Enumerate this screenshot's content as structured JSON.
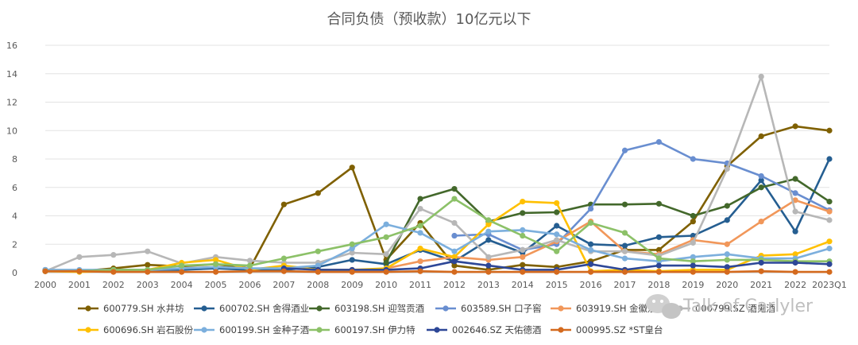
{
  "chart_data": {
    "type": "line",
    "title": "合同负债（预收款）10亿元以下",
    "xlabel": "",
    "ylabel": "",
    "ylim": [
      0,
      16
    ],
    "yticks": [
      0,
      2,
      4,
      6,
      8,
      10,
      12,
      14,
      16
    ],
    "grid": true,
    "legend_position": "bottom",
    "categories": [
      "2000",
      "2001",
      "2002",
      "2003",
      "2004",
      "2005",
      "2006",
      "2007",
      "2008",
      "2009",
      "2010",
      "2011",
      "2012",
      "2013",
      "2014",
      "2015",
      "2016",
      "2017",
      "2018",
      "2019",
      "2020",
      "2021",
      "2022",
      "2023Q1"
    ],
    "series": [
      {
        "name": "600779.SH 水井坊",
        "color": "#7f6000",
        "values": [
          0.15,
          0.1,
          0.3,
          0.55,
          0.45,
          0.6,
          0.3,
          4.8,
          5.6,
          7.4,
          0.9,
          3.5,
          0.5,
          0.2,
          0.55,
          0.4,
          0.8,
          1.6,
          1.6,
          3.6,
          7.5,
          9.6,
          10.3,
          10.0
        ]
      },
      {
        "name": "600702.SH 舍得酒业",
        "color": "#255e91",
        "values": [
          0.2,
          0.1,
          0.2,
          0.2,
          0.2,
          0.3,
          0.2,
          0.2,
          0.4,
          0.9,
          0.6,
          1.6,
          0.8,
          2.3,
          1.4,
          3.3,
          2.0,
          1.9,
          2.5,
          2.6,
          3.7,
          6.5,
          2.9,
          8.0
        ]
      },
      {
        "name": "603198.SH 迎驾贡酒",
        "color": "#43682b",
        "values": [
          null,
          null,
          null,
          null,
          null,
          null,
          null,
          null,
          null,
          null,
          0.7,
          5.2,
          5.9,
          3.6,
          4.2,
          4.25,
          4.8,
          4.8,
          4.85,
          4.0,
          4.7,
          6.0,
          6.6,
          5.0
        ]
      },
      {
        "name": "603589.SH 口子窖",
        "color": "#698ed0",
        "values": [
          null,
          null,
          null,
          null,
          null,
          null,
          null,
          null,
          null,
          null,
          null,
          null,
          2.6,
          2.7,
          1.6,
          2.0,
          4.5,
          8.6,
          9.2,
          8.0,
          7.7,
          6.8,
          5.6,
          4.4
        ]
      },
      {
        "name": "603919.SH 金徽酒",
        "color": "#f1975a",
        "values": [
          null,
          null,
          null,
          null,
          null,
          null,
          null,
          null,
          null,
          null,
          0.3,
          0.8,
          1.1,
          0.9,
          1.1,
          2.2,
          3.6,
          1.5,
          1.3,
          2.3,
          2.0,
          3.6,
          5.1,
          4.3
        ]
      },
      {
        "name": "000799.SZ 酒鬼酒",
        "color": "#b7b7b7",
        "values": [
          0.1,
          1.1,
          1.25,
          1.5,
          0.65,
          1.1,
          0.85,
          0.7,
          0.7,
          1.4,
          1.3,
          4.5,
          3.5,
          1.1,
          1.6,
          2.3,
          1.5,
          1.5,
          1.2,
          2.1,
          7.3,
          13.8,
          4.3,
          3.7
        ]
      },
      {
        "name": "600696.SH 岩石股份",
        "color": "#ffc000",
        "values": [
          0.1,
          0.05,
          0.1,
          0.2,
          0.7,
          0.9,
          0.2,
          0.5,
          0.2,
          0.2,
          0.3,
          1.7,
          1.1,
          3.4,
          5.0,
          4.9,
          0.1,
          0.2,
          0.1,
          0.2,
          0.2,
          1.2,
          1.3,
          2.2
        ]
      },
      {
        "name": "600199.SH 金种子酒",
        "color": "#7cafdd",
        "values": [
          0.2,
          0.2,
          0.2,
          0.2,
          0.3,
          0.4,
          0.3,
          0.3,
          0.5,
          1.7,
          3.4,
          2.8,
          1.5,
          2.9,
          3.0,
          2.7,
          1.6,
          1.0,
          0.8,
          1.1,
          1.3,
          1.0,
          1.0,
          1.7
        ]
      },
      {
        "name": "600197.SH 伊力特",
        "color": "#8cc168",
        "values": [
          0.1,
          0.1,
          0.2,
          0.2,
          0.5,
          0.6,
          0.5,
          1.0,
          1.5,
          2.0,
          2.5,
          3.3,
          5.2,
          3.7,
          2.6,
          1.5,
          3.5,
          2.8,
          1.0,
          0.8,
          0.9,
          0.9,
          0.8,
          0.8
        ]
      },
      {
        "name": "002646.SZ 天佑德酒",
        "color": "#2d4797",
        "values": [
          null,
          null,
          null,
          null,
          null,
          null,
          null,
          0.3,
          0.2,
          0.2,
          0.2,
          0.3,
          0.8,
          0.5,
          0.2,
          0.2,
          0.6,
          0.2,
          0.5,
          0.5,
          0.4,
          0.7,
          0.7,
          0.6
        ]
      },
      {
        "name": "000995.SZ *ST皇台",
        "color": "#d46a1e",
        "values": [
          0.1,
          0.1,
          0.05,
          0.05,
          0.05,
          0.05,
          0.1,
          0.1,
          0.05,
          0.05,
          0.05,
          0.1,
          0.05,
          0.05,
          0.05,
          0.05,
          0.05,
          0.05,
          0.05,
          0.05,
          0.05,
          0.1,
          0.05,
          0.05
        ]
      }
    ]
  },
  "watermark": {
    "text": "Talk of Carlyler"
  }
}
